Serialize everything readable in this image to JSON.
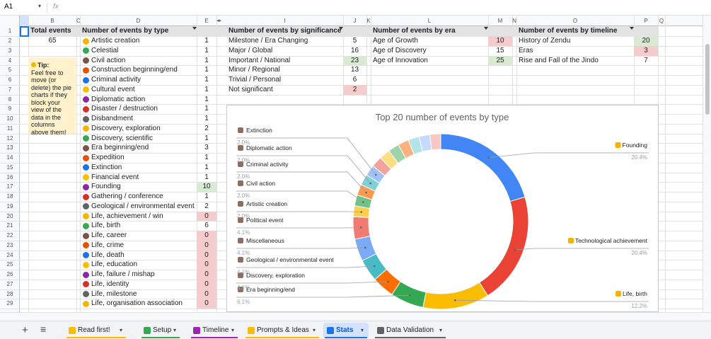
{
  "toolbar": {
    "cell_ref": "A1",
    "fx": "fx"
  },
  "sheet": {
    "columns": [
      "A",
      "B",
      "C",
      "D",
      "E",
      "I",
      "J",
      "K",
      "L",
      "M",
      "N",
      "O",
      "P",
      "Q"
    ],
    "rows": [
      1,
      2,
      3,
      4,
      5,
      6,
      7,
      8,
      9,
      10,
      11,
      12,
      13,
      14,
      15,
      16,
      17,
      18,
      19,
      20,
      21,
      22,
      23,
      24,
      25,
      26,
      27,
      28,
      29
    ],
    "total": {
      "header": "Total events",
      "value": 65
    },
    "tip": {
      "title": "Tip:",
      "text": "Feel free to move (or delete) the pie charts if they block your view of the data in the columns above them!"
    },
    "tables": [
      {
        "header": "Number of events by type",
        "labels": [
          "Artistic creation",
          "Celestial",
          "Civil action",
          "Construction beginning/end",
          "Criminal activity",
          "Cultural event",
          "Diplomatic action",
          "Disaster / destruction",
          "Disbandment",
          "Discovery, exploration",
          "Discovery, scientific",
          "Era beginning/end",
          "Expedition",
          "Extinction",
          "Financial event",
          "Founding",
          "Gathering / conference",
          "Geological / environmental event",
          "Life, achievement / win",
          "Life, birth",
          "Life, career",
          "Life, crime",
          "Life, death",
          "Life, education",
          "Life, failure / mishap",
          "Life, identity",
          "Life, milestone",
          "Life, organisation association"
        ],
        "values": [
          1,
          1,
          1,
          1,
          1,
          1,
          1,
          1,
          1,
          2,
          1,
          3,
          1,
          1,
          1,
          10,
          1,
          2,
          0,
          6,
          0,
          0,
          0,
          0,
          0,
          0,
          0,
          0
        ]
      },
      {
        "header": "Number of events by significance",
        "labels": [
          "Milestone / Era Changing",
          "Major / Global",
          "Important / National",
          "Minor / Regional",
          "Trivial / Personal",
          "Not significant"
        ],
        "values": [
          5,
          16,
          23,
          13,
          6,
          2
        ]
      },
      {
        "header": "Number of events by era",
        "labels": [
          "Age of Growth",
          "Age of Discovery",
          "Age of Innovation"
        ],
        "values": [
          10,
          15,
          25
        ]
      },
      {
        "header": "Number of events by timeline",
        "labels": [
          "History of Zendu",
          "Eras",
          "Rise and Fall of the Jindo"
        ],
        "values": [
          20,
          3,
          7
        ]
      }
    ]
  },
  "chart_data": {
    "type": "pie",
    "donut": true,
    "title": "Top 20 number of events by type",
    "categories": [
      "Founding",
      "Technological achievement",
      "Life, birth",
      "Era beginning/end",
      "Discovery, exploration",
      "Geological / environmental event",
      "Miscellaneous",
      "Political event",
      "Artistic creation",
      "Civil action",
      "Criminal activity",
      "Diplomatic action",
      "Extinction",
      null,
      null,
      null,
      null,
      null,
      null,
      null
    ],
    "values": [
      20.4,
      20.4,
      12.2,
      6.1,
      4.1,
      4.1,
      4.1,
      4.1,
      2.0,
      2.0,
      2.0,
      2.0,
      2.0,
      2.0,
      2.0,
      2.0,
      2.0,
      2.0,
      2.0,
      2.0
    ],
    "value_labels": [
      "20.4%",
      "20.4%",
      "12.2%",
      "6.1%",
      "4.1%",
      "4.1%",
      "4.1%",
      "4.1%",
      "2.0%",
      "2.0%",
      "2.0%",
      "2.0%",
      "2.0%",
      null,
      null,
      null,
      null,
      null,
      null,
      null
    ],
    "colors": [
      "#4285f4",
      "#ea4335",
      "#fbbc04",
      "#34a853",
      "#ff6d01",
      "#46bdc6",
      "#7baaf7",
      "#f07b72",
      "#fcd04f",
      "#71c287",
      "#ff994d",
      "#7ed1d7",
      "#a0c2f9",
      "#f4a29c",
      "#fdde83",
      "#9dd4ab",
      "#ffb27f",
      "#b3e5e8",
      "#c6dafc",
      "#f7c8c4"
    ]
  },
  "tabs": [
    "Read first!",
    "Setup",
    "Timeline",
    "Prompts & Ideas",
    "Stats",
    "Data Validation"
  ],
  "active_tab": 4
}
